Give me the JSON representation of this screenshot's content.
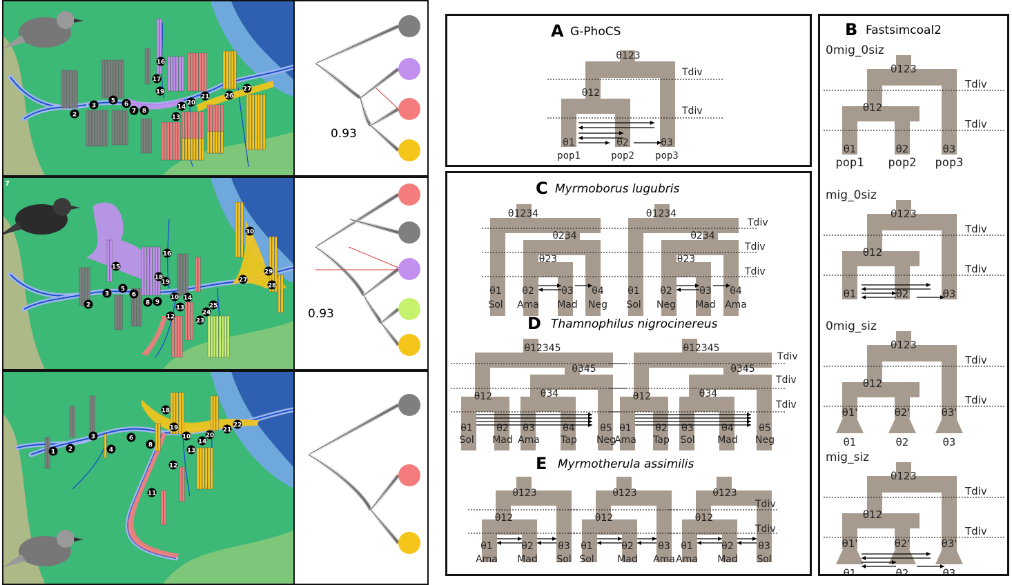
{
  "colors": {
    "grey": "#7f7f7f",
    "purple": "#c291f0",
    "red": "#f47c7c",
    "yellow": "#f6c519",
    "green": "#c6f26e",
    "ocean": "#2e5fb0",
    "land": "#3cb877",
    "box": "#a79a8e"
  },
  "maps": [
    {
      "labels": [
        "2",
        "3",
        "5",
        "6",
        "7",
        "8",
        "13",
        "14",
        "16",
        "17",
        "19",
        "20",
        "21",
        "26",
        "27"
      ]
    },
    {
      "labels": [
        "2",
        "3",
        "5",
        "6",
        "8",
        "9",
        "10",
        "12",
        "13",
        "14",
        "15",
        "16",
        "18",
        "19",
        "23",
        "24",
        "25",
        "27",
        "28",
        "29",
        "30"
      ],
      "corner": "7"
    },
    {
      "labels": [
        "1",
        "2",
        "3",
        "4",
        "6",
        "8",
        "10",
        "11",
        "12",
        "13",
        "14",
        "18",
        "19",
        "20",
        "21",
        "22"
      ]
    }
  ],
  "trees": [
    {
      "support": "0.93",
      "tips": [
        "grey",
        "purple",
        "red",
        "yellow"
      ]
    },
    {
      "support": "0.93",
      "tips": [
        "red",
        "grey",
        "purple",
        "green",
        "yellow"
      ]
    },
    {
      "tips": [
        "grey",
        "red",
        "yellow"
      ]
    }
  ],
  "panelA": {
    "letter": "A",
    "title": "G-PhoCS",
    "root": "θ123",
    "mid": "θ12",
    "tdiv": "Tdiv",
    "tips": [
      "θ1",
      "θ2",
      "θ3"
    ],
    "pops": [
      "pop1",
      "pop2",
      "pop3"
    ]
  },
  "panelB": {
    "letter": "B",
    "title": "Fastsimcoal2",
    "models": [
      {
        "name": "0mig_0siz",
        "root": "θ123",
        "mid": "θ12",
        "tips": [
          "θ1",
          "θ2",
          "θ3"
        ],
        "pops": [
          "pop1",
          "pop2",
          "pop3"
        ]
      },
      {
        "name": "mig_0siz",
        "root": "θ123",
        "mid": "θ12",
        "tips": [
          "θ1",
          "θ2",
          "θ3"
        ]
      },
      {
        "name": "0mig_siz",
        "root": "θ123",
        "mid": "θ12",
        "tips": [
          "θ1'",
          "θ2'",
          "θ3'"
        ],
        "bottom": [
          "θ1",
          "θ2",
          "θ3"
        ]
      },
      {
        "name": "mig_siz",
        "root": "θ123",
        "mid": "θ12",
        "tips": [
          "θ1'",
          "θ2'",
          "θ3'"
        ],
        "bottom": [
          "θ1",
          "θ2",
          "θ3"
        ]
      }
    ],
    "tdiv": "Tdiv"
  },
  "panelC": {
    "letter": "C",
    "species": "Myrmoborus lugubris",
    "tdiv": "Tdiv",
    "nodes": [
      "θ1234",
      "θ234",
      "θ23"
    ],
    "tips": [
      "θ1",
      "θ2",
      "θ3",
      "θ4"
    ],
    "popsLeft": [
      "Sol",
      "Ama",
      "Mad",
      "Neg"
    ],
    "popsRight": [
      "Sol",
      "Neg",
      "Mad",
      "Ama"
    ]
  },
  "panelD": {
    "letter": "D",
    "species": "Thamnophilus nigrocinereus",
    "tdiv": "Tdiv",
    "nodes": [
      "θ12345",
      "θ345",
      "θ12",
      "θ34"
    ],
    "tips": [
      "θ1",
      "θ2",
      "θ3",
      "θ4",
      "θ5"
    ],
    "popsLeft": [
      "Sol",
      "Mad",
      "Ama",
      "Tap",
      "Neg"
    ],
    "popsRight": [
      "Ama",
      "Tap",
      "Sol",
      "Mad",
      "Neg"
    ]
  },
  "panelE": {
    "letter": "E",
    "species": "Myrmotherula assimilis",
    "tdiv": "Tdiv",
    "nodes": [
      "θ123",
      "θ12"
    ],
    "tips": [
      "θ1",
      "θ2",
      "θ3"
    ],
    "pops": [
      [
        "Ama",
        "Mad",
        "Sol"
      ],
      [
        "Sol",
        "Mad",
        "Ama"
      ],
      [
        "Ama",
        "Mad",
        "Sol"
      ]
    ]
  }
}
